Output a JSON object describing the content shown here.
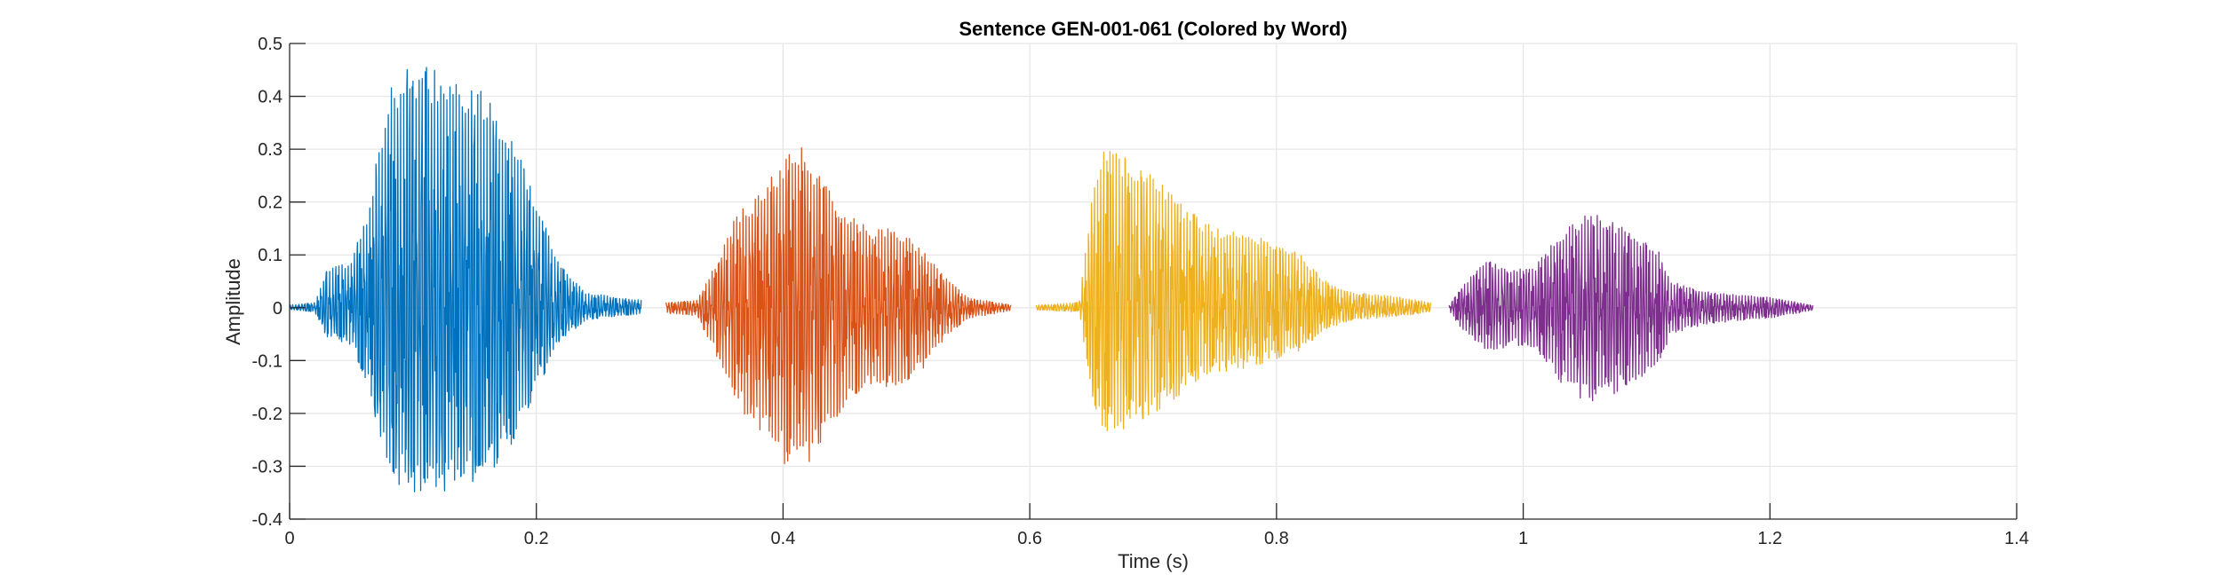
{
  "chart_data": {
    "type": "line",
    "title": "Sentence GEN-001-061 (Colored by Word)",
    "xlabel": "Time (s)",
    "ylabel": "Amplitude",
    "xlim": [
      0,
      1.4
    ],
    "ylim": [
      -0.4,
      0.5
    ],
    "x_ticks": [
      0,
      0.2,
      0.4,
      0.6,
      0.8,
      1.0,
      1.2,
      1.4
    ],
    "x_tick_labels": [
      "0",
      "0.2",
      "0.4",
      "0.6",
      "0.8",
      "1",
      "1.2",
      "1.4"
    ],
    "y_ticks": [
      -0.4,
      -0.3,
      -0.2,
      -0.1,
      0,
      0.1,
      0.2,
      0.3,
      0.4,
      0.5
    ],
    "y_tick_labels": [
      "-0.4",
      "-0.3",
      "-0.2",
      "-0.1",
      "0",
      "0.1",
      "0.2",
      "0.3",
      "0.4",
      "0.5"
    ],
    "grid": true,
    "series": [
      {
        "color": "#0072BD",
        "start": 0.0,
        "end": 0.285,
        "envelope": [
          [
            0.0,
            0.005
          ],
          [
            0.02,
            0.01
          ],
          [
            0.03,
            0.07
          ],
          [
            0.05,
            0.09
          ],
          [
            0.065,
            0.2
          ],
          [
            0.08,
            0.42
          ],
          [
            0.1,
            0.46
          ],
          [
            0.12,
            0.45
          ],
          [
            0.14,
            0.43
          ],
          [
            0.16,
            0.41
          ],
          [
            0.18,
            0.33
          ],
          [
            0.2,
            0.2
          ],
          [
            0.22,
            0.08
          ],
          [
            0.24,
            0.03
          ],
          [
            0.265,
            0.02
          ],
          [
            0.285,
            0.015
          ]
        ],
        "neg_scale": 0.78
      },
      {
        "color": "#D95319",
        "start": 0.305,
        "end": 0.585,
        "envelope": [
          [
            0.305,
            0.01
          ],
          [
            0.33,
            0.015
          ],
          [
            0.345,
            0.08
          ],
          [
            0.36,
            0.17
          ],
          [
            0.38,
            0.22
          ],
          [
            0.4,
            0.28
          ],
          [
            0.415,
            0.31
          ],
          [
            0.43,
            0.25
          ],
          [
            0.45,
            0.18
          ],
          [
            0.47,
            0.15
          ],
          [
            0.49,
            0.15
          ],
          [
            0.51,
            0.12
          ],
          [
            0.53,
            0.06
          ],
          [
            0.55,
            0.02
          ],
          [
            0.585,
            0.005
          ]
        ],
        "neg_scale": 1.05
      },
      {
        "color": "#EDB120",
        "start": 0.605,
        "end": 0.925,
        "envelope": [
          [
            0.605,
            0.005
          ],
          [
            0.64,
            0.01
          ],
          [
            0.65,
            0.2
          ],
          [
            0.66,
            0.31
          ],
          [
            0.68,
            0.28
          ],
          [
            0.7,
            0.25
          ],
          [
            0.72,
            0.21
          ],
          [
            0.74,
            0.16
          ],
          [
            0.76,
            0.15
          ],
          [
            0.78,
            0.14
          ],
          [
            0.8,
            0.12
          ],
          [
            0.82,
            0.1
          ],
          [
            0.84,
            0.05
          ],
          [
            0.86,
            0.03
          ],
          [
            0.9,
            0.02
          ],
          [
            0.925,
            0.01
          ]
        ],
        "neg_scale": 0.8
      },
      {
        "color": "#7E2F8E",
        "start": 0.94,
        "end": 1.235,
        "envelope": [
          [
            0.94,
            0.005
          ],
          [
            0.95,
            0.04
          ],
          [
            0.97,
            0.09
          ],
          [
            0.99,
            0.07
          ],
          [
            1.01,
            0.08
          ],
          [
            1.03,
            0.14
          ],
          [
            1.05,
            0.18
          ],
          [
            1.07,
            0.17
          ],
          [
            1.09,
            0.14
          ],
          [
            1.11,
            0.11
          ],
          [
            1.12,
            0.05
          ],
          [
            1.15,
            0.03
          ],
          [
            1.2,
            0.02
          ],
          [
            1.235,
            0.005
          ]
        ],
        "neg_scale": 1.0
      }
    ]
  }
}
